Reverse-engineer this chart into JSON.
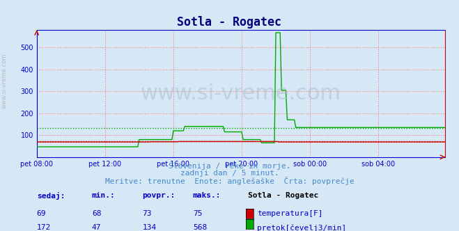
{
  "title": "Sotla - Rogatec",
  "title_color": "#000080",
  "bg_color": "#d6e8f5",
  "plot_bg_color": "#d6e8f5",
  "ylim": [
    0,
    580
  ],
  "yticks": [
    100,
    200,
    300,
    400,
    500
  ],
  "grid_color": "#ff6666",
  "grid_style": "dotted",
  "x_labels": [
    "pet 08:00",
    "pet 12:00",
    "pet 16:00",
    "pet 20:00",
    "sob 00:00",
    "sob 04:00"
  ],
  "x_ticks_pos": [
    0,
    48,
    96,
    144,
    192,
    240
  ],
  "total_points": 288,
  "temp_color": "#cc0000",
  "temp_avg_color": "#cc0000",
  "flow_color": "#00aa00",
  "flow_avg_color": "#00aa00",
  "temp_avg": 73,
  "flow_avg": 134,
  "watermark": "www.si-vreme.com",
  "subtitle1": "Slovenija / reke in morje.",
  "subtitle2": "zadnji dan / 5 minut.",
  "subtitle3": "Meritve: trenutne  Enote: anglešaške  Črta: povprečje",
  "subtitle_color": "#4488cc",
  "table_headers": [
    "sedaj:",
    "min.:",
    "povpr.:",
    "maks.:"
  ],
  "table_color": "#0000cc",
  "station_name": "Sotla - Rogatec",
  "temp_vals": [
    69,
    68,
    73,
    75
  ],
  "flow_vals": [
    172,
    47,
    134,
    568
  ],
  "temp_label": "temperatura[F]",
  "flow_label": "pretok[čevelj3/min]",
  "border_color": "#0000cc",
  "axis_color": "#0000cc"
}
